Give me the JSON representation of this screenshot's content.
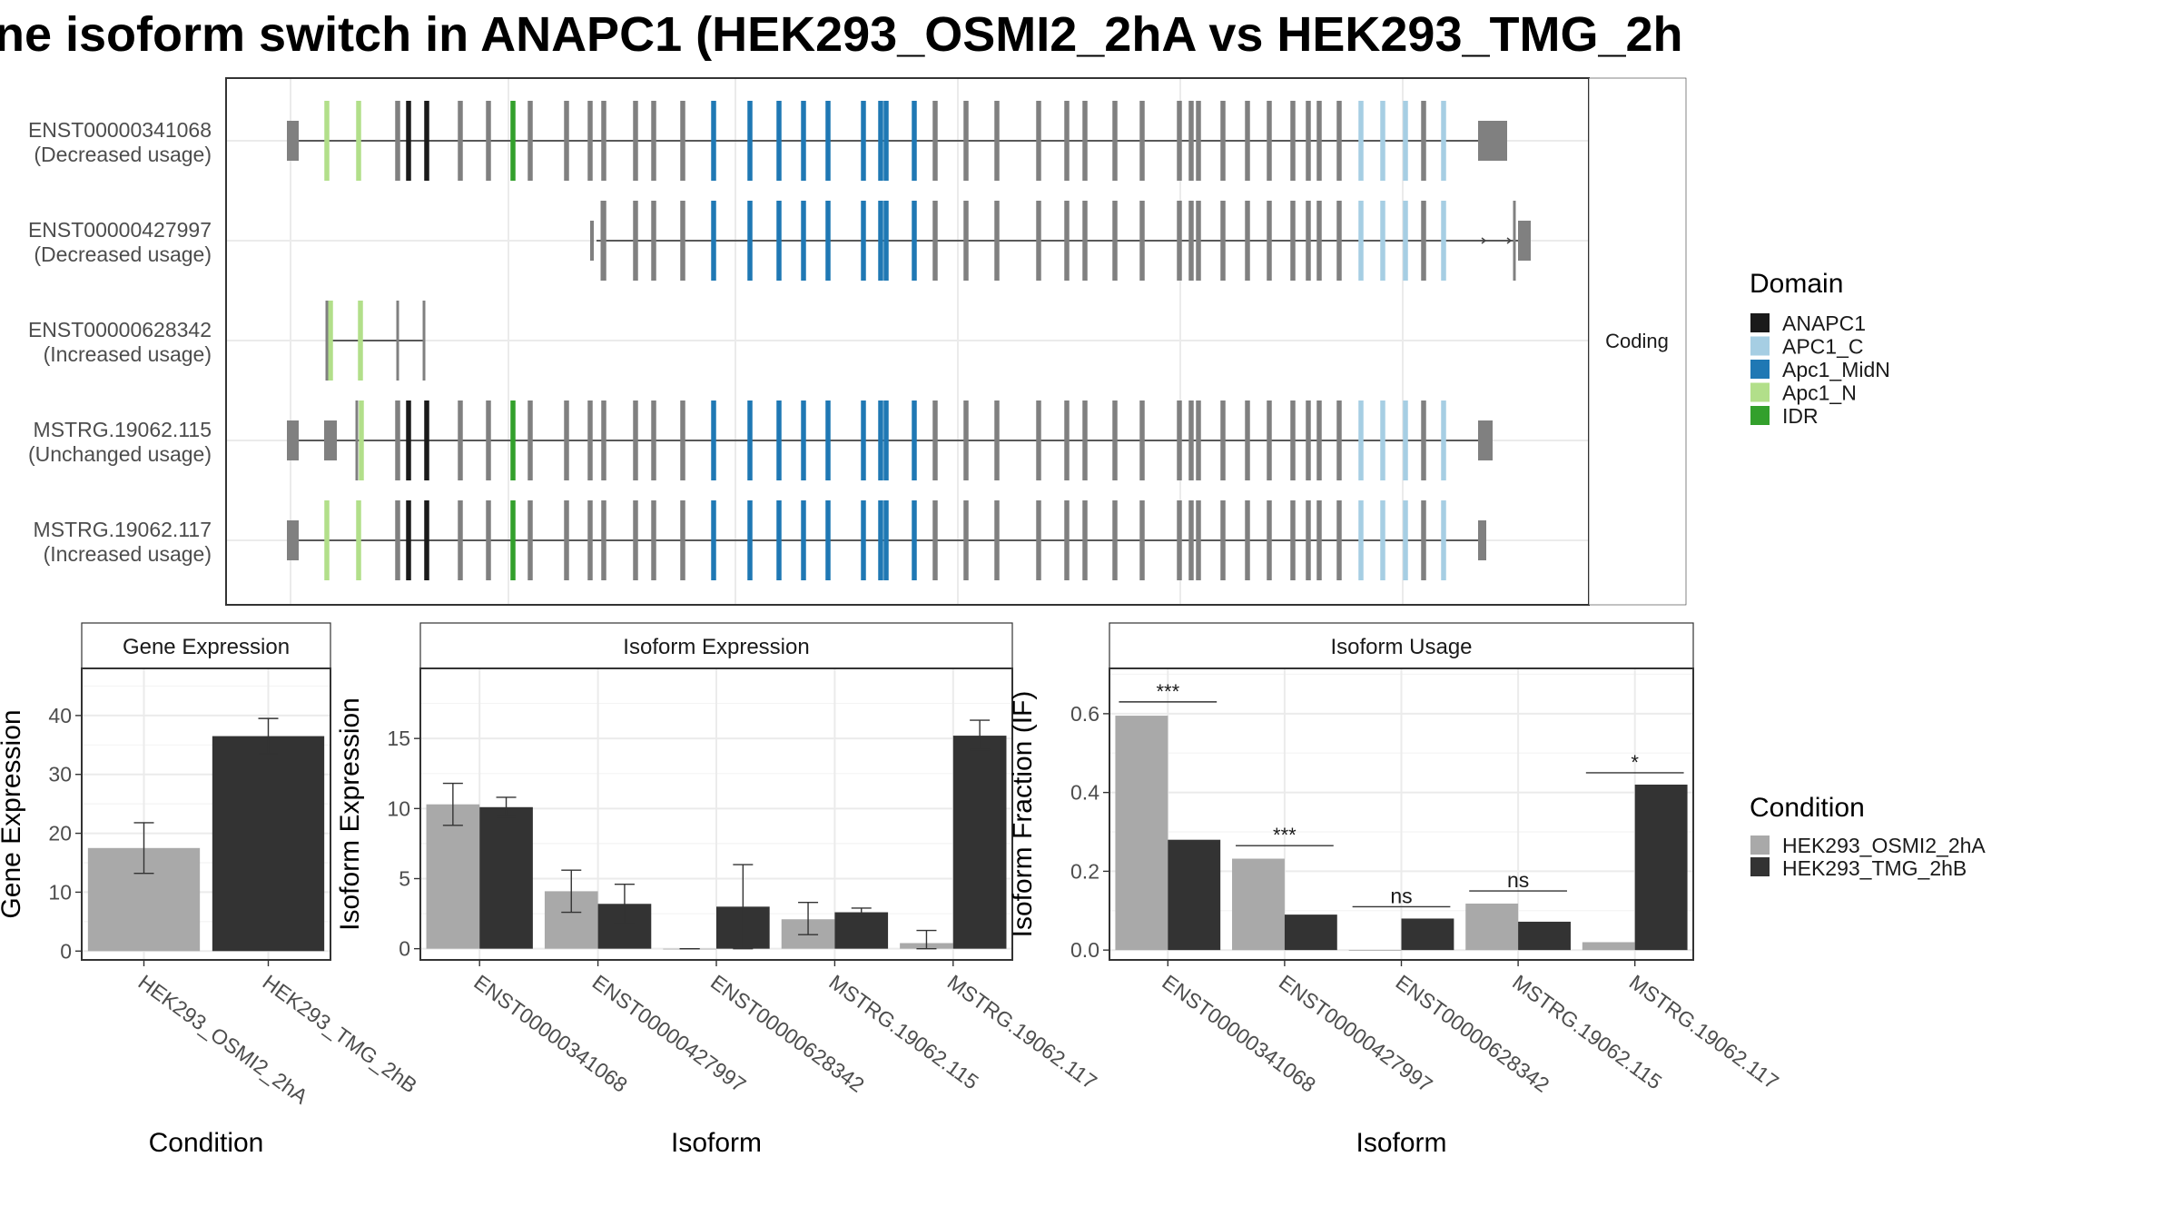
{
  "title": "ne isoform switch in ANAPC1 (HEK293_OSMI2_2hA vs HEK293_TMG_2h",
  "colors": {
    "cond_a": "#a9a9a9",
    "cond_b": "#333333",
    "exon_default": "#808080",
    "ANAPC1": "#1a1a1a",
    "APC1_C": "#a6cee3",
    "Apc1_MidN": "#1f78b4",
    "Apc1_N": "#b2df8a",
    "IDR": "#33a02c"
  },
  "transcripts": {
    "facet_label": "Coding",
    "legend_title": "Domain",
    "domains": [
      "ANAPC1",
      "APC1_C",
      "Apc1_MidN",
      "Apc1_N",
      "IDR"
    ],
    "rows": [
      {
        "id": "ENST00000341068",
        "status": "(Decreased usage)"
      },
      {
        "id": "ENST00000427997",
        "status": "(Decreased usage)"
      },
      {
        "id": "ENST00000628342",
        "status": "(Increased usage)"
      },
      {
        "id": "MSTRG.19062.115",
        "status": "(Unchanged usage)"
      },
      {
        "id": "MSTRG.19062.117",
        "status": "(Increased usage)"
      }
    ]
  },
  "condition_legend": {
    "title": "Condition",
    "items": [
      "HEK293_OSMI2_2hA",
      "HEK293_TMG_2hB"
    ]
  },
  "chart_data": [
    {
      "type": "bar",
      "title": "Gene Expression",
      "xlabel": "Condition",
      "ylabel": "Gene Expression",
      "ylim": [
        -1.5,
        48
      ],
      "yticks": [
        0,
        10,
        20,
        30,
        40
      ],
      "categories": [
        "HEK293_OSMI2_2hA",
        "HEK293_TMG_2hB"
      ],
      "series": [
        {
          "values": [
            17.5,
            36.5
          ],
          "err_low": [
            13.2,
            33.5
          ],
          "err_high": [
            21.8,
            39.5
          ]
        }
      ]
    },
    {
      "type": "bar",
      "title": "Isoform Expression",
      "xlabel": "Isoform",
      "ylabel": "Isoform Expression",
      "ylim": [
        -0.8,
        20
      ],
      "yticks": [
        0,
        5,
        10,
        15
      ],
      "categories": [
        "ENST00000341068",
        "ENST00000427997",
        "ENST00000628342",
        "MSTRG.19062.115",
        "MSTRG.19062.117"
      ],
      "series": [
        {
          "name": "HEK293_OSMI2_2hA",
          "values": [
            10.3,
            4.1,
            0.0,
            2.1,
            0.4
          ],
          "err_low": [
            8.8,
            2.6,
            0.0,
            1.0,
            0.0
          ],
          "err_high": [
            11.8,
            5.6,
            0.0,
            3.3,
            1.3
          ]
        },
        {
          "name": "HEK293_TMG_2hB",
          "values": [
            10.1,
            3.2,
            3.0,
            2.6,
            15.2
          ],
          "err_low": [
            9.4,
            1.8,
            0.0,
            2.3,
            14.2
          ],
          "err_high": [
            10.8,
            4.6,
            6.0,
            2.9,
            16.3
          ]
        }
      ]
    },
    {
      "type": "bar",
      "title": "Isoform Usage",
      "xlabel": "Isoform",
      "ylabel": "Isoform Fraction (IF)",
      "ylim": [
        -0.025,
        0.715
      ],
      "yticks": [
        0.0,
        0.2,
        0.4,
        0.6
      ],
      "ytick_labels": [
        "0.0",
        "0.2",
        "0.4",
        "0.6"
      ],
      "categories": [
        "ENST00000341068",
        "ENST00000427997",
        "ENST00000628342",
        "MSTRG.19062.115",
        "MSTRG.19062.117"
      ],
      "series": [
        {
          "name": "HEK293_OSMI2_2hA",
          "values": [
            0.595,
            0.232,
            0.0,
            0.118,
            0.02
          ]
        },
        {
          "name": "HEK293_TMG_2hB",
          "values": [
            0.28,
            0.09,
            0.08,
            0.072,
            0.42
          ]
        }
      ],
      "significance": [
        "***",
        "***",
        "ns",
        "ns",
        "*"
      ],
      "significance_level": [
        0.63,
        0.265,
        0.11,
        0.15,
        0.45
      ]
    }
  ]
}
